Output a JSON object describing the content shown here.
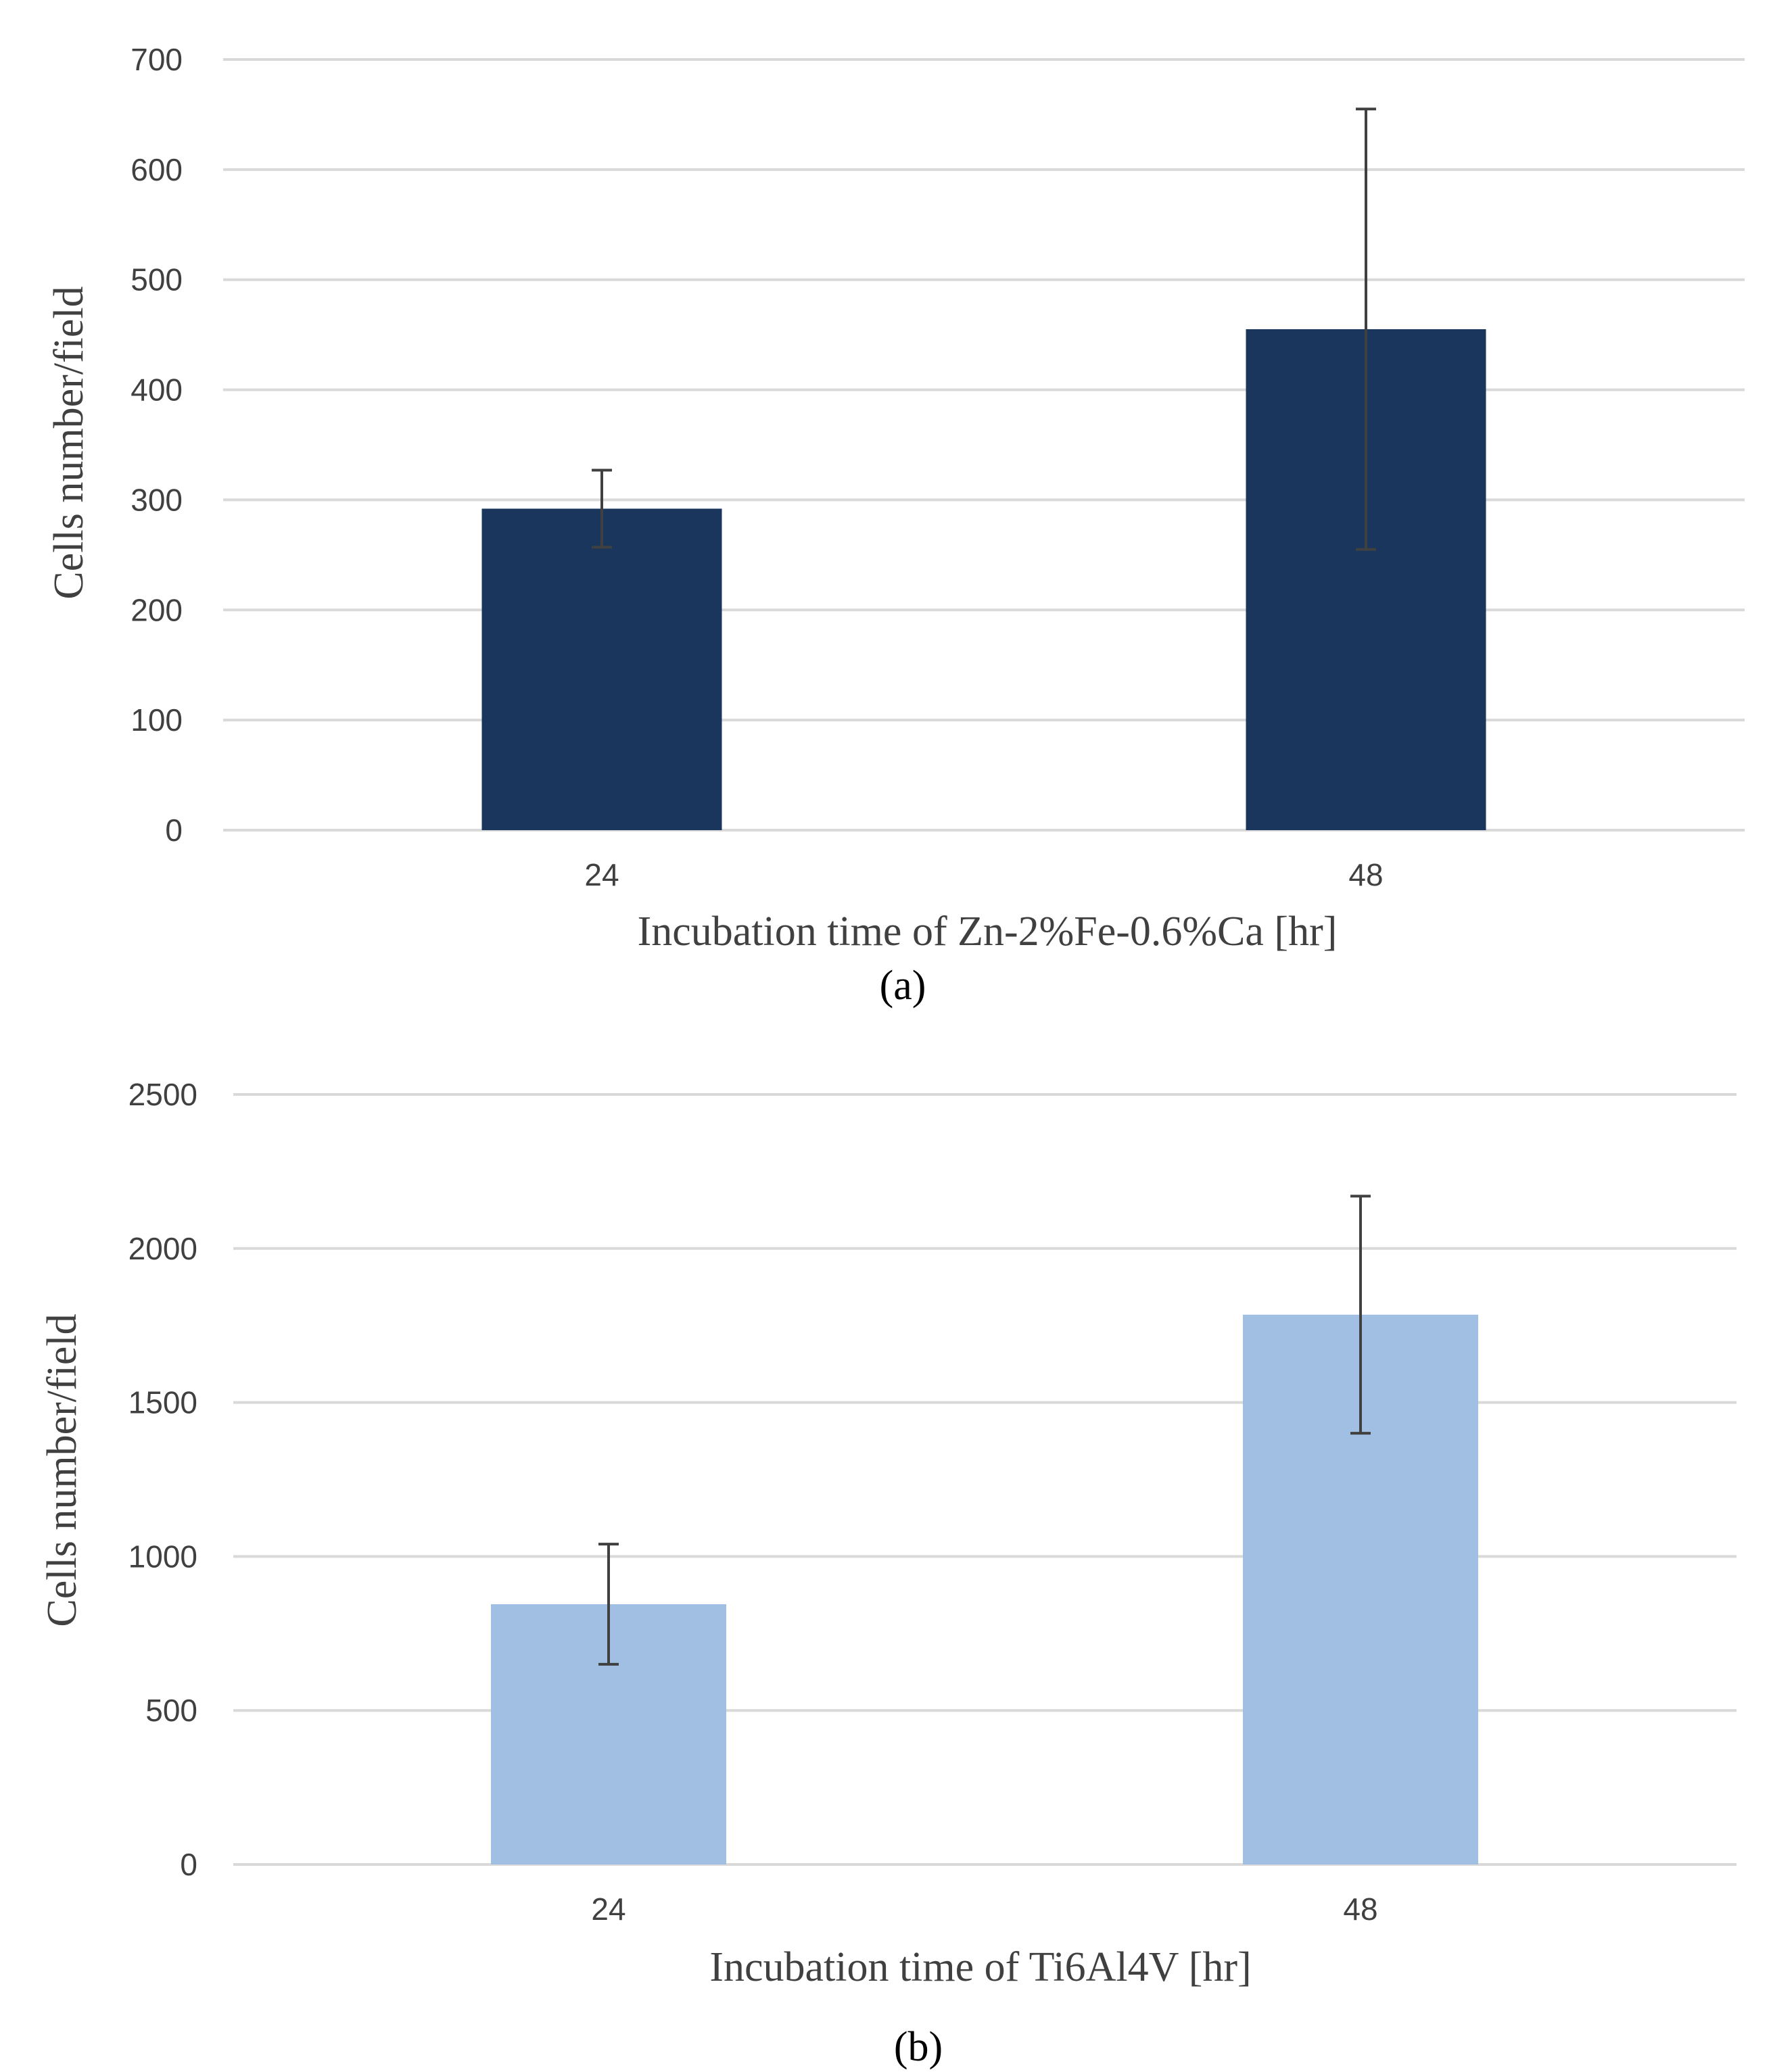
{
  "chart_data": [
    {
      "type": "bar",
      "panel_label": "(a)",
      "categories": [
        "24",
        "48"
      ],
      "values": [
        292,
        455
      ],
      "errors": [
        35,
        200
      ],
      "ylim": [
        0,
        700
      ],
      "yticks": [
        0,
        100,
        200,
        300,
        400,
        500,
        600,
        700
      ],
      "xlabel": "Incubation time of Zn-2%Fe-0.6%Ca [hr]",
      "ylabel": "Cells number/field",
      "bar_color": "#1a365d",
      "grid": true
    },
    {
      "type": "bar",
      "panel_label": "(b)",
      "categories": [
        "24",
        "48"
      ],
      "values": [
        845,
        1785
      ],
      "errors": [
        195,
        385
      ],
      "ylim": [
        0,
        2500
      ],
      "yticks": [
        0,
        500,
        1000,
        1500,
        2000,
        2500
      ],
      "xlabel": "Incubation time of Ti6Al4V [hr]",
      "ylabel": "Cells number/field",
      "bar_color": "#a1bfe3",
      "grid": true
    }
  ]
}
